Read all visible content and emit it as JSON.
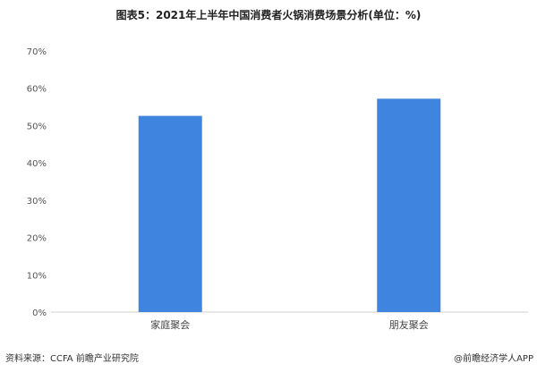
{
  "chart_data": {
    "type": "bar",
    "title": "图表5：2021年上半年中国消费者火锅消费场景分析(单位：%)",
    "categories": [
      "家庭聚会",
      "朋友聚会"
    ],
    "values": [
      52.6,
      57.2
    ],
    "ylim": [
      0,
      70
    ],
    "yticks": [
      "0%",
      "10%",
      "20%",
      "30%",
      "40%",
      "50%",
      "60%",
      "70%"
    ],
    "xlabel": "",
    "ylabel": "",
    "grid": false,
    "bar_color": "#3f85e0"
  },
  "footer": {
    "source": "资料来源：CCFA 前瞻产业研究院",
    "credit": "@前瞻经济学人APP"
  }
}
